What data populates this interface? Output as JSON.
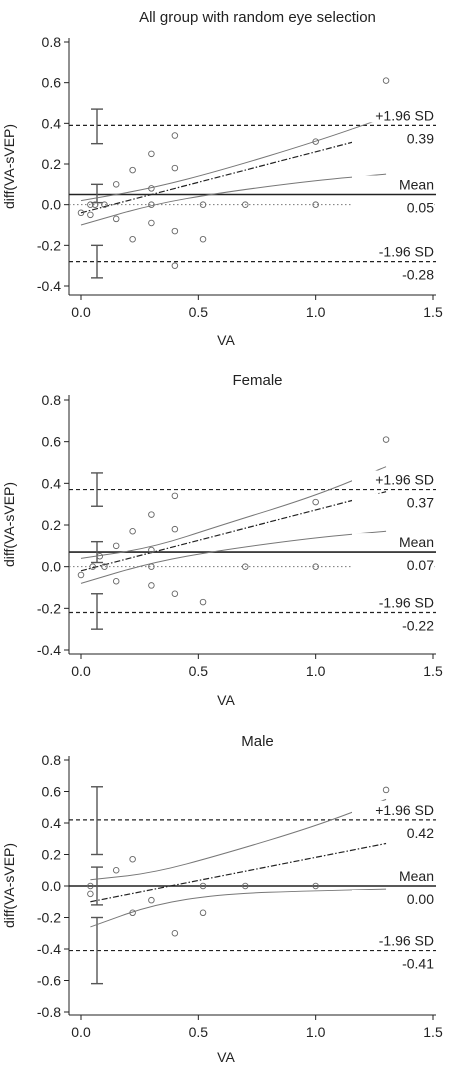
{
  "chart_data": [
    {
      "type": "scatter",
      "title": "All group with random eye selection",
      "xlabel": "VA",
      "ylabel": "diff(VA-sVEP)",
      "xlim": [
        -0.05,
        1.5
      ],
      "ylim": [
        -0.45,
        0.85
      ],
      "xticks": [
        "0.0",
        "0.5",
        "1.0",
        "1.5"
      ],
      "yticks": [
        "-0.4",
        "-0.2",
        "0.0",
        "0.2",
        "0.4",
        "0.6",
        "0.8"
      ],
      "grid": false,
      "points": [
        {
          "x": 0.0,
          "y": -0.04
        },
        {
          "x": 0.04,
          "y": -0.05
        },
        {
          "x": 0.04,
          "y": 0.0
        },
        {
          "x": 0.06,
          "y": 0.0
        },
        {
          "x": 0.1,
          "y": 0.0
        },
        {
          "x": 0.15,
          "y": 0.1
        },
        {
          "x": 0.15,
          "y": -0.07
        },
        {
          "x": 0.22,
          "y": 0.17
        },
        {
          "x": 0.22,
          "y": -0.17
        },
        {
          "x": 0.3,
          "y": 0.25
        },
        {
          "x": 0.3,
          "y": 0.08
        },
        {
          "x": 0.3,
          "y": 0.0
        },
        {
          "x": 0.3,
          "y": -0.09
        },
        {
          "x": 0.4,
          "y": 0.34
        },
        {
          "x": 0.4,
          "y": -0.13
        },
        {
          "x": 0.4,
          "y": -0.3
        },
        {
          "x": 0.4,
          "y": 0.18
        },
        {
          "x": 0.52,
          "y": 0.0
        },
        {
          "x": 0.52,
          "y": -0.17
        },
        {
          "x": 0.7,
          "y": 0.0
        },
        {
          "x": 1.0,
          "y": 0.0
        },
        {
          "x": 1.0,
          "y": 0.31
        },
        {
          "x": 1.3,
          "y": 0.61
        }
      ],
      "mean": {
        "label": "Mean",
        "value": 0.05,
        "value_label": "0.05",
        "ci": [
          0.01,
          0.1
        ]
      },
      "upper_loa": {
        "label": "+1.96 SD",
        "value": 0.39,
        "value_label": "0.39",
        "ci": [
          0.3,
          0.47
        ]
      },
      "lower_loa": {
        "label": "-1.96 SD",
        "value": -0.28,
        "value_label": "-0.28",
        "ci": [
          -0.36,
          -0.2
        ]
      },
      "regression": {
        "x": [
          0.0,
          1.3
        ],
        "y": [
          -0.04,
          0.35
        ]
      },
      "regression_ci_upper": [
        [
          0.0,
          0.02
        ],
        [
          0.3,
          0.08
        ],
        [
          0.6,
          0.17
        ],
        [
          1.0,
          0.31
        ],
        [
          1.3,
          0.43
        ]
      ],
      "regression_ci_lower": [
        [
          0.0,
          -0.1
        ],
        [
          0.3,
          0.0
        ],
        [
          0.6,
          0.06
        ],
        [
          1.0,
          0.12
        ],
        [
          1.3,
          0.15
        ]
      ]
    },
    {
      "type": "scatter",
      "title": "Female",
      "xlabel": "VA",
      "ylabel": "diff(VA-sVEP)",
      "xlim": [
        -0.05,
        1.5
      ],
      "ylim": [
        -0.45,
        0.85
      ],
      "xticks": [
        "0.0",
        "0.5",
        "1.0",
        "1.5"
      ],
      "yticks": [
        "-0.4",
        "-0.2",
        "0.0",
        "0.2",
        "0.4",
        "0.6",
        "0.8"
      ],
      "grid": false,
      "points": [
        {
          "x": 0.0,
          "y": -0.04
        },
        {
          "x": 0.05,
          "y": 0.0
        },
        {
          "x": 0.08,
          "y": 0.05
        },
        {
          "x": 0.1,
          "y": 0.0
        },
        {
          "x": 0.15,
          "y": 0.1
        },
        {
          "x": 0.15,
          "y": -0.07
        },
        {
          "x": 0.22,
          "y": 0.17
        },
        {
          "x": 0.3,
          "y": 0.25
        },
        {
          "x": 0.3,
          "y": 0.08
        },
        {
          "x": 0.3,
          "y": 0.0
        },
        {
          "x": 0.3,
          "y": -0.09
        },
        {
          "x": 0.4,
          "y": 0.34
        },
        {
          "x": 0.4,
          "y": 0.18
        },
        {
          "x": 0.4,
          "y": -0.13
        },
        {
          "x": 0.52,
          "y": -0.17
        },
        {
          "x": 0.7,
          "y": 0.0
        },
        {
          "x": 1.0,
          "y": 0.31
        },
        {
          "x": 1.0,
          "y": 0.0
        },
        {
          "x": 1.3,
          "y": 0.61
        }
      ],
      "mean": {
        "label": "Mean",
        "value": 0.07,
        "value_label": "0.07",
        "ci": [
          0.02,
          0.12
        ]
      },
      "upper_loa": {
        "label": "+1.96 SD",
        "value": 0.37,
        "value_label": "0.37",
        "ci": [
          0.29,
          0.45
        ]
      },
      "lower_loa": {
        "label": "-1.96 SD",
        "value": -0.22,
        "value_label": "-0.22",
        "ci": [
          -0.3,
          -0.13
        ]
      },
      "regression": {
        "x": [
          0.0,
          1.3
        ],
        "y": [
          -0.02,
          0.36
        ]
      },
      "regression_ci_upper": [
        [
          0.0,
          0.04
        ],
        [
          0.3,
          0.09
        ],
        [
          0.6,
          0.2
        ],
        [
          1.0,
          0.34
        ],
        [
          1.3,
          0.48
        ]
      ],
      "regression_ci_lower": [
        [
          0.0,
          -0.08
        ],
        [
          0.3,
          0.02
        ],
        [
          0.6,
          0.08
        ],
        [
          1.0,
          0.14
        ],
        [
          1.3,
          0.17
        ]
      ]
    },
    {
      "type": "scatter",
      "title": "Male",
      "xlabel": "VA",
      "ylabel": "diff(VA-sVEP)",
      "xlim": [
        -0.05,
        1.5
      ],
      "ylim": [
        -0.85,
        0.85
      ],
      "xticks": [
        "0.0",
        "0.5",
        "1.0",
        "1.5"
      ],
      "yticks": [
        "-0.8",
        "-0.6",
        "-0.4",
        "-0.2",
        "0.0",
        "0.2",
        "0.4",
        "0.6",
        "0.8"
      ],
      "grid": false,
      "points": [
        {
          "x": 0.04,
          "y": 0.0
        },
        {
          "x": 0.04,
          "y": -0.05
        },
        {
          "x": 0.15,
          "y": 0.1
        },
        {
          "x": 0.22,
          "y": 0.17
        },
        {
          "x": 0.22,
          "y": -0.17
        },
        {
          "x": 0.3,
          "y": -0.09
        },
        {
          "x": 0.4,
          "y": -0.3
        },
        {
          "x": 0.52,
          "y": 0.0
        },
        {
          "x": 0.52,
          "y": -0.17
        },
        {
          "x": 0.7,
          "y": 0.0
        },
        {
          "x": 1.0,
          "y": 0.0
        },
        {
          "x": 1.3,
          "y": 0.61
        }
      ],
      "mean": {
        "label": "Mean",
        "value": 0.0,
        "value_label": "0.00",
        "ci": [
          -0.12,
          0.12
        ]
      },
      "upper_loa": {
        "label": "+1.96 SD",
        "value": 0.42,
        "value_label": "0.42",
        "ci": [
          0.2,
          0.63
        ]
      },
      "lower_loa": {
        "label": "-1.96 SD",
        "value": -0.41,
        "value_label": "-0.41",
        "ci": [
          -0.2,
          -0.62
        ]
      },
      "regression": {
        "x": [
          0.04,
          1.3
        ],
        "y": [
          -0.1,
          0.27
        ]
      },
      "regression_ci_upper": [
        [
          0.04,
          0.04
        ],
        [
          0.3,
          0.08
        ],
        [
          0.6,
          0.2
        ],
        [
          1.0,
          0.38
        ],
        [
          1.3,
          0.55
        ]
      ],
      "regression_ci_lower": [
        [
          0.04,
          -0.26
        ],
        [
          0.3,
          -0.12
        ],
        [
          0.6,
          -0.05
        ],
        [
          1.0,
          -0.03
        ],
        [
          1.3,
          -0.02
        ]
      ]
    }
  ]
}
